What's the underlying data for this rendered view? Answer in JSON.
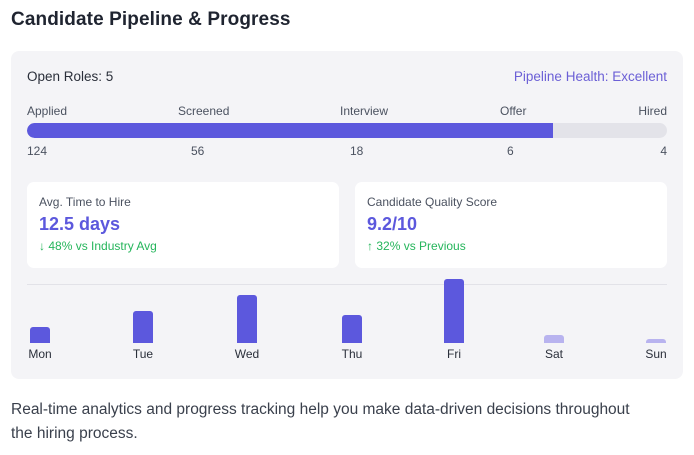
{
  "title": "Candidate Pipeline & Progress",
  "open_roles": "Open Roles: 5",
  "health": "Pipeline Health: Excellent",
  "pipeline": {
    "stages": [
      "Applied",
      "Screened",
      "Interview",
      "Offer",
      "Hired"
    ],
    "counts": [
      "124",
      "56",
      "18",
      "6",
      "4"
    ],
    "progress_fraction": 0.822
  },
  "metrics": [
    {
      "label": "Avg. Time to Hire",
      "value": "12.5 days",
      "delta": "48% vs Industry Avg",
      "arrow": "↓"
    },
    {
      "label": "Candidate Quality Score",
      "value": "9.2/10",
      "delta": "32% vs Previous",
      "arrow": "↑"
    }
  ],
  "chart_data": {
    "type": "bar",
    "categories": [
      "Mon",
      "Tue",
      "Wed",
      "Thu",
      "Fri",
      "Sat",
      "Sun"
    ],
    "values": [
      16,
      32,
      48,
      28,
      64,
      8,
      4
    ],
    "ylim": [
      0,
      64
    ],
    "colors": [
      "#5c58dd",
      "#5c58dd",
      "#5c58dd",
      "#5c58dd",
      "#5c58dd",
      "#b8b3ef",
      "#b8b3ef"
    ]
  },
  "caption": "Real-time analytics and progress tracking help you make data-driven decisions throughout the hiring process.",
  "colors": {
    "accent": "#5c58dd",
    "positive": "#25b55b",
    "panel": "#f4f4f7"
  }
}
